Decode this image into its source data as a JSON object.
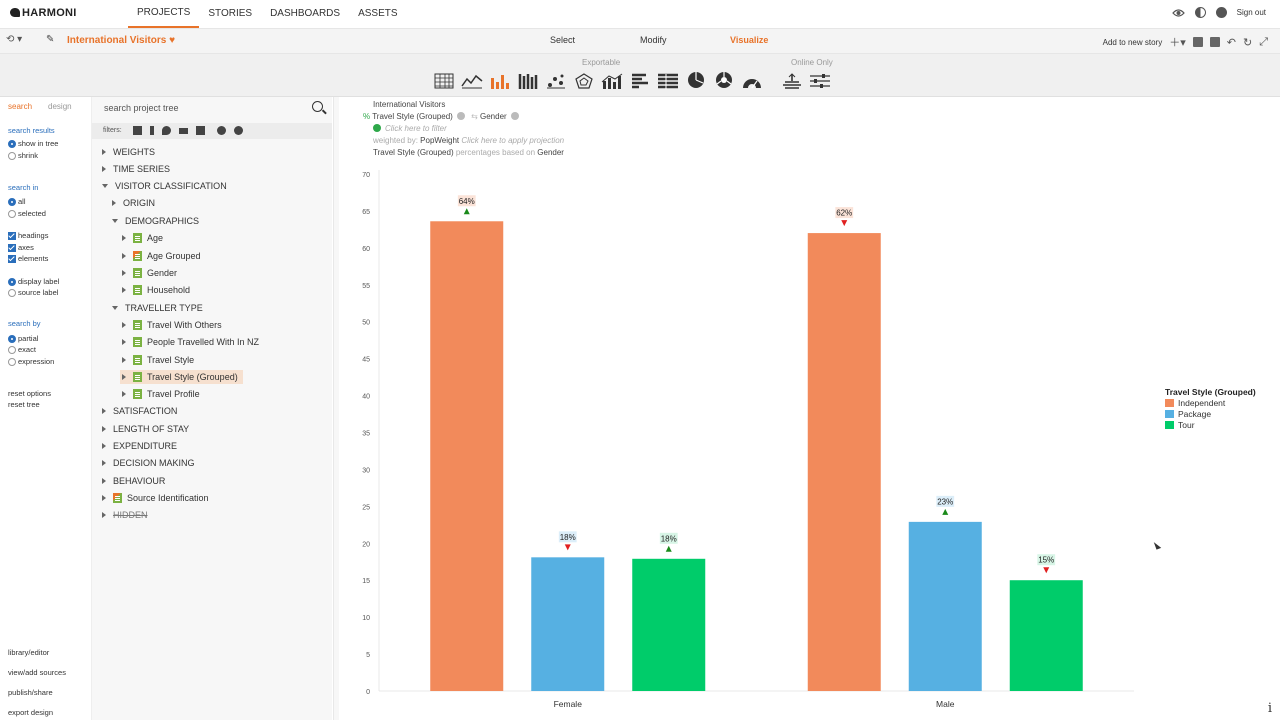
{
  "app": {
    "logo": "HARMONI"
  },
  "nav": [
    {
      "label": "PROJECTS",
      "active": true
    },
    {
      "label": "STORIES",
      "active": false
    },
    {
      "label": "DASHBOARDS",
      "active": false
    },
    {
      "label": "ASSETS",
      "active": false
    }
  ],
  "top_right": {
    "sign_out": "Sign out"
  },
  "toolbar": {
    "story_title": "International Visitors",
    "modes": [
      "Select",
      "Modify",
      "Visualize"
    ],
    "active_mode": "Visualize",
    "add_story": "Add to new story"
  },
  "vizbar": {
    "exportable_label": "Exportable",
    "online_only_label": "Online Only"
  },
  "sidebar": {
    "tabs": [
      "search",
      "design"
    ],
    "search_results_heading": "search results",
    "search_results": [
      "show in tree",
      "shrink"
    ],
    "search_in_heading": "search in",
    "search_in": [
      "all",
      "selected"
    ],
    "search_elements": [
      "headings",
      "axes",
      "elements"
    ],
    "labels": [
      "display label",
      "source label"
    ],
    "search_by_heading": "search by",
    "search_by": [
      "partial",
      "exact",
      "expression"
    ],
    "reset_options": "reset options",
    "reset_tree": "reset tree",
    "footer_links": [
      "library/editor",
      "view/add sources",
      "publish/share",
      "export design"
    ]
  },
  "tree": {
    "search_placeholder": "search project tree",
    "filters_label": "filters:",
    "rows": [
      "WEIGHTS",
      "TIME SERIES",
      "VISITOR CLASSIFICATION",
      "ORIGIN",
      "DEMOGRAPHICS",
      "Age",
      "Age Grouped",
      "Gender",
      "Household",
      "TRAVELLER TYPE",
      "Travel With Others",
      "People Travelled With In NZ",
      "Travel Style",
      "Travel Style (Grouped)",
      "Travel Profile",
      "SATISFACTION",
      "LENGTH OF STAY",
      "EXPENDITURE",
      "DECISION MAKING",
      "BEHAVIOUR",
      "Source Identification",
      "HIDDEN"
    ]
  },
  "query": {
    "title": "International Visitors",
    "row_var": "Travel Style (Grouped)",
    "col_var": "Gender",
    "filter_hint": "Click here to filter",
    "weighted_prefix": "weighted by:",
    "weight_var": "PopWeight",
    "projection_hint": "Click here to apply projection",
    "pct_var": "Travel Style (Grouped)",
    "pct_text": "percentages based on",
    "pct_base": "Gender"
  },
  "chart_data": {
    "type": "bar",
    "categories": [
      "Female",
      "Male"
    ],
    "series": [
      {
        "name": "Independent",
        "color": "#f28a5b",
        "values": [
          63.6,
          62
        ],
        "labels": [
          "64%",
          "62%"
        ],
        "arrows": [
          "up",
          "down"
        ]
      },
      {
        "name": "Package",
        "color": "#56b0e2",
        "values": [
          18.1,
          22.9
        ],
        "labels": [
          "18%",
          "23%"
        ],
        "arrows": [
          "down",
          "up"
        ]
      },
      {
        "name": "Tour",
        "color": "#00cc6a",
        "values": [
          17.9,
          15
        ],
        "labels": [
          "18%",
          "15%"
        ],
        "arrows": [
          "up",
          "down"
        ]
      }
    ],
    "legend_title": "Travel Style (Grouped)",
    "ylim": [
      0,
      70
    ],
    "yticks": [
      0,
      5,
      10,
      15,
      20,
      25,
      30,
      35,
      40,
      45,
      50,
      55,
      60,
      65,
      70
    ],
    "grid": false,
    "legend_position": "right"
  }
}
